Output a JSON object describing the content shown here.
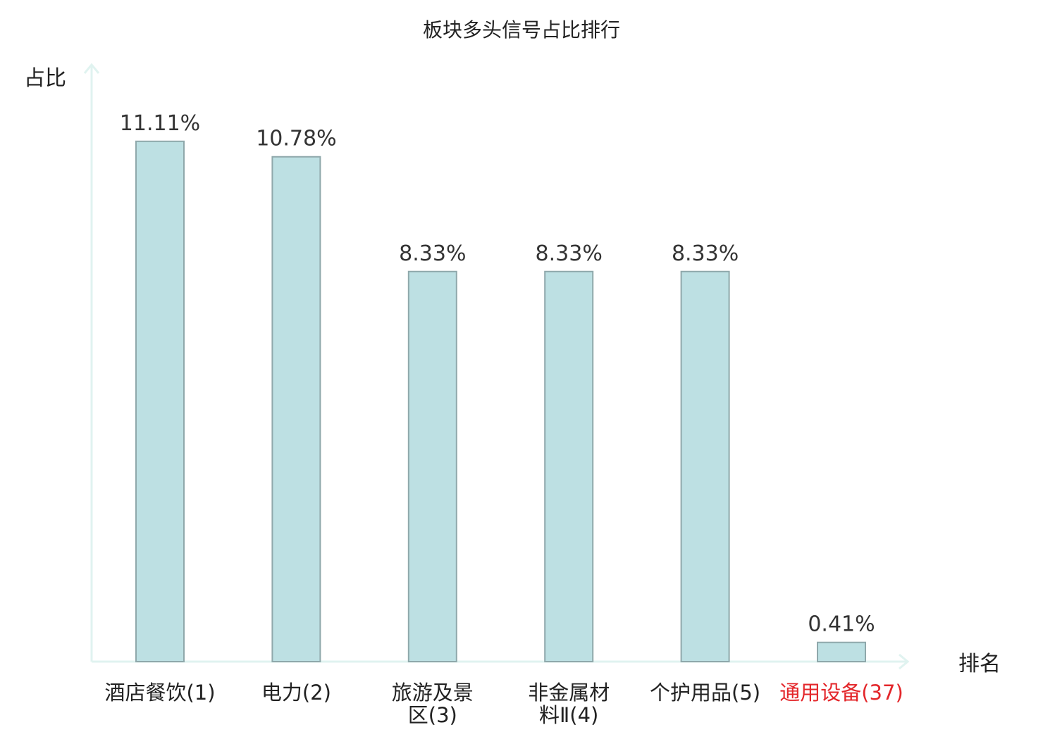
{
  "chart_data": {
    "type": "bar",
    "title": "板块多头信号占比排行",
    "ylabel": "占比",
    "xlabel": "排名",
    "ylim": [
      0,
      12.7
    ],
    "grid": false,
    "legend": "none",
    "categories": [
      [
        "酒店餐饮(1)"
      ],
      [
        "电力(2)"
      ],
      [
        "旅游及景",
        "区(3)"
      ],
      [
        "非金属材",
        "料Ⅱ(4)"
      ],
      [
        "个护用品(5)"
      ],
      [
        "通用设备(37)"
      ]
    ],
    "values": [
      11.11,
      10.78,
      8.33,
      8.33,
      8.33,
      0.41
    ],
    "value_labels": [
      "11.11%",
      "10.78%",
      "8.33%",
      "8.33%",
      "8.33%",
      "0.41%"
    ],
    "highlight_index": 5
  },
  "colors": {
    "bar_fill": "#bde0e3",
    "bar_stroke": "#8fa8ab",
    "axis": "#e0f3f0",
    "text": "#222222",
    "highlight": "#e3262a"
  }
}
